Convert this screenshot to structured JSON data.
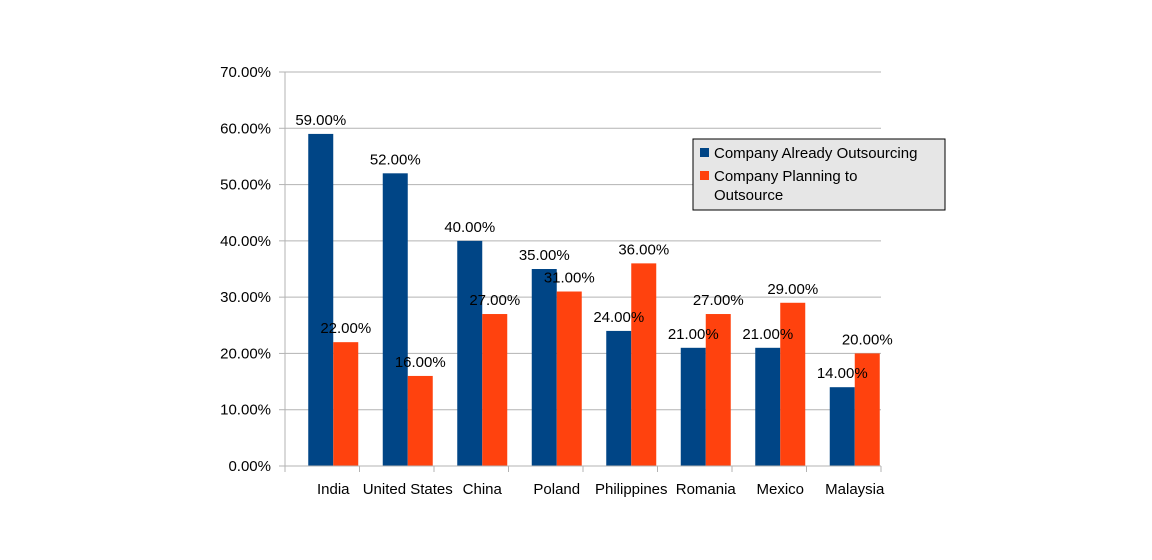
{
  "chart_data": {
    "type": "bar",
    "categories": [
      "India",
      "United States",
      "China",
      "Poland",
      "Philippines",
      "Romania",
      "Mexico",
      "Malaysia"
    ],
    "series": [
      {
        "name": "Company Already Outsourcing",
        "color": "#004586",
        "values": [
          59,
          52,
          40,
          35,
          24,
          21,
          21,
          14
        ],
        "labels": [
          "59.00%",
          "52.00%",
          "40.00%",
          "35.00%",
          "24.00%",
          "21.00%",
          "21.00%",
          "14.00%"
        ]
      },
      {
        "name": "Company Planning to Outsource",
        "name_lines": [
          "Company Planning to",
          "Outsource"
        ],
        "color": "#ff420e",
        "values": [
          22,
          16,
          27,
          31,
          36,
          27,
          29,
          20
        ],
        "labels": [
          "22.00%",
          "16.00%",
          "27.00%",
          "31.00%",
          "36.00%",
          "27.00%",
          "29.00%",
          "20.00%"
        ]
      }
    ],
    "yticks": [
      "0.00%",
      "10.00%",
      "20.00%",
      "30.00%",
      "40.00%",
      "50.00%",
      "60.00%",
      "70.00%"
    ],
    "ylim": [
      0,
      70
    ],
    "title": "",
    "xlabel": "",
    "ylabel": "",
    "grid": true,
    "legend_position": "right",
    "gridline_color": "#b3b3b3",
    "legend_background": "#e6e6e6"
  }
}
